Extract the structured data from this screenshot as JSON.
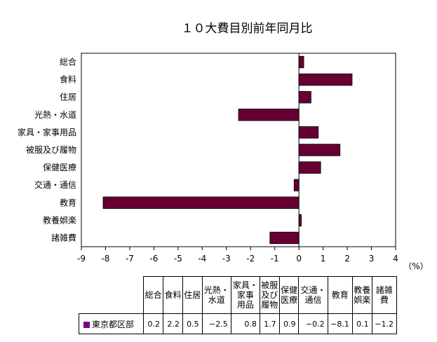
{
  "chart_data": {
    "type": "bar",
    "orientation": "horizontal",
    "title": "１０大費目別前年同月比",
    "unit_label": "（%）",
    "categories": [
      "総合",
      "食料",
      "住居",
      "光熱・水道",
      "家具・家事用品",
      "被服及び履物",
      "保健医療",
      "交通・通信",
      "教育",
      "教養娯楽",
      "諸雑費"
    ],
    "series": [
      {
        "name": "東京都区部",
        "color": "#660033",
        "values": [
          0.2,
          2.2,
          0.5,
          -2.5,
          0.8,
          1.7,
          0.9,
          -0.2,
          -8.1,
          0.1,
          -1.2
        ]
      }
    ],
    "xlim": [
      -9,
      4
    ],
    "xticks": [
      "-9",
      "-8",
      "-7",
      "-6",
      "-5",
      "-4",
      "-3",
      "-2",
      "-1",
      "0",
      "1",
      "2",
      "3",
      "4"
    ],
    "grid": false,
    "legend": "table"
  },
  "table": {
    "headers": [
      [
        "総合"
      ],
      [
        "食料"
      ],
      [
        "住居"
      ],
      [
        "光熱・",
        "水道"
      ],
      [
        "家具・",
        "家事",
        "用品"
      ],
      [
        "被服",
        "及び",
        "履物"
      ],
      [
        "保健",
        "医療"
      ],
      [
        "交通・",
        "通信"
      ],
      [
        "教育"
      ],
      [
        "教養",
        "娯楽"
      ],
      [
        "諸雑",
        "費"
      ]
    ],
    "row_label": "東京都区部",
    "values": [
      "0.2",
      "2.2",
      "0.5",
      "−2.5",
      "0.8",
      "1.7",
      "0.9",
      "−0.2",
      "−8.1",
      "0.1",
      "−1.2"
    ]
  }
}
